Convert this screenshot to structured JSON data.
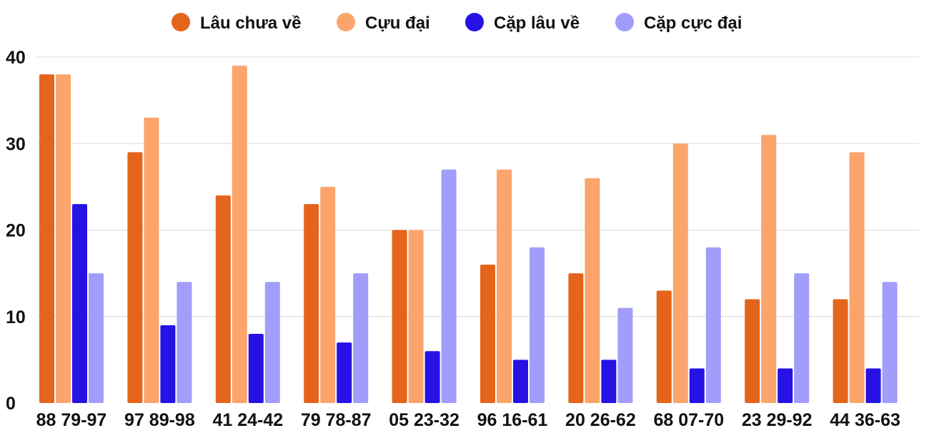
{
  "chart_data": {
    "type": "bar",
    "categories": [
      "88 79-97",
      "97 89-98",
      "41 24-42",
      "79 78-87",
      "05 23-32",
      "96 16-61",
      "20 26-62",
      "68 07-70",
      "23 29-92",
      "44 36-63"
    ],
    "series": [
      {
        "name": "Lâu chưa về",
        "color": "#e5641b",
        "values": [
          38,
          29,
          24,
          23,
          20,
          16,
          15,
          13,
          12,
          12
        ]
      },
      {
        "name": "Cựu đại",
        "color": "#fba46c",
        "values": [
          38,
          33,
          39,
          25,
          20,
          27,
          26,
          30,
          31,
          29
        ]
      },
      {
        "name": "Cặp lâu về",
        "color": "#2612e4",
        "values": [
          23,
          9,
          8,
          7,
          6,
          5,
          5,
          4,
          4,
          4
        ]
      },
      {
        "name": "Cặp cực đại",
        "color": "#a29dfb",
        "values": [
          15,
          14,
          14,
          15,
          27,
          18,
          11,
          18,
          15,
          14
        ]
      }
    ],
    "yticks": [
      "0",
      "10",
      "20",
      "30",
      "40"
    ],
    "ylim": [
      0,
      40
    ],
    "grid": true,
    "legend_position": "top-center"
  }
}
